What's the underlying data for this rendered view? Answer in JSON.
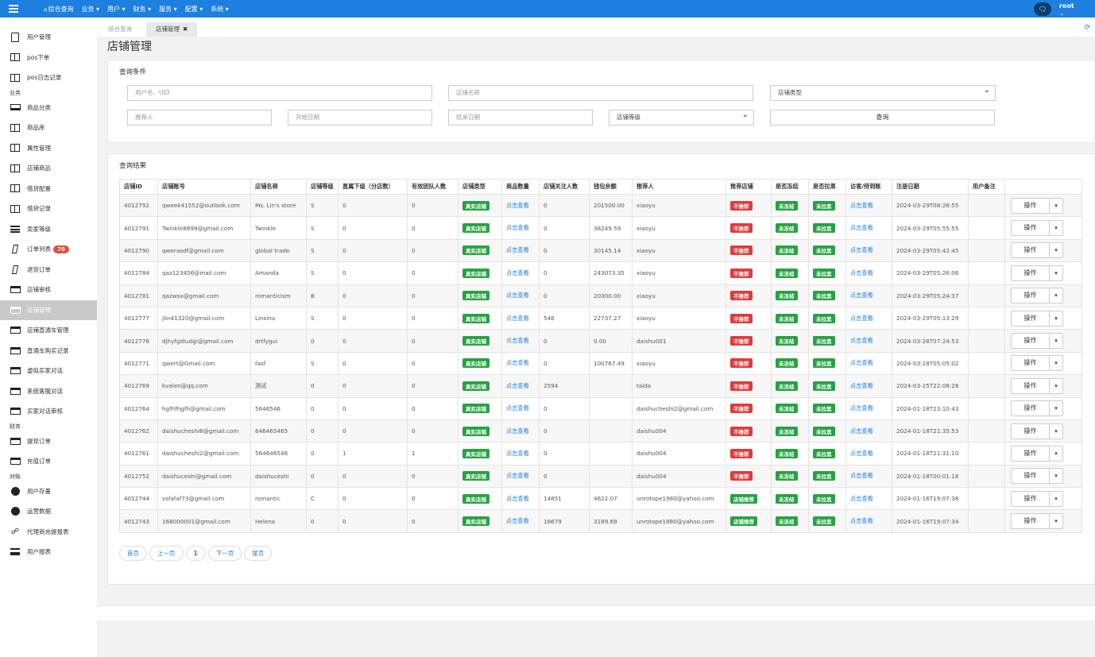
{
  "topbar": {
    "nav": [
      "综合查询",
      "业务",
      "用户",
      "财务",
      "服务",
      "配置",
      "系统"
    ],
    "user": "root"
  },
  "sidebar": {
    "items": [
      {
        "type": "item",
        "label": "用户管理",
        "icon": "file-icon"
      },
      {
        "type": "item",
        "label": "pos下单",
        "icon": "columns-icon"
      },
      {
        "type": "item",
        "label": "pos日志记录",
        "icon": "columns-icon"
      },
      {
        "type": "group",
        "label": "业务"
      },
      {
        "type": "item",
        "label": "商品分类",
        "icon": "laptop-icon"
      },
      {
        "type": "item",
        "label": "商品库",
        "icon": "columns-icon"
      },
      {
        "type": "item",
        "label": "属性管理",
        "icon": "columns-icon"
      },
      {
        "type": "item",
        "label": "店铺商品",
        "icon": "columns-icon"
      },
      {
        "type": "item",
        "label": "借贷配置",
        "icon": "columns-icon"
      },
      {
        "type": "item",
        "label": "借贷记录",
        "icon": "columns-icon"
      },
      {
        "type": "item",
        "label": "卖家等级",
        "icon": "list-icon"
      },
      {
        "type": "item",
        "label": "订单列表",
        "icon": "italic-icon",
        "badge": "70"
      },
      {
        "type": "item",
        "label": "退货订单",
        "icon": "italic-icon"
      },
      {
        "type": "item",
        "label": "店铺审核",
        "icon": "card-icon"
      },
      {
        "type": "item",
        "label": "店铺管理",
        "icon": "card-icon",
        "active": true
      },
      {
        "type": "item",
        "label": "店铺直通车管理",
        "icon": "card-icon"
      },
      {
        "type": "item",
        "label": "直通车购买记录",
        "icon": "card-icon"
      },
      {
        "type": "item",
        "label": "虚拟买家对话",
        "icon": "card-icon"
      },
      {
        "type": "item",
        "label": "系统客服对话",
        "icon": "card-icon"
      },
      {
        "type": "item",
        "label": "买家对话审核",
        "icon": "card-icon"
      },
      {
        "type": "group",
        "label": "财务"
      },
      {
        "type": "item",
        "label": "提现订单",
        "icon": "card-icon"
      },
      {
        "type": "item",
        "label": "充值订单",
        "icon": "card-icon"
      },
      {
        "type": "group",
        "label": "对账"
      },
      {
        "type": "item",
        "label": "用户存量",
        "icon": "pie-icon"
      },
      {
        "type": "item",
        "label": "运营数据",
        "icon": "pie-icon"
      },
      {
        "type": "item",
        "label": "代理商充提报表",
        "icon": "sitemap-icon"
      },
      {
        "type": "item",
        "label": "用户报表",
        "icon": "align-icon"
      }
    ]
  },
  "tabs": {
    "home": "综合查询",
    "current": "店铺管理"
  },
  "page_title": "店铺管理",
  "query": {
    "title": "查询条件",
    "user_placeholder": "用户名、UID",
    "shop_name_placeholder": "店铺名称",
    "shop_type_selected": "店铺类型",
    "referrer_placeholder": "推荐人",
    "start_date_placeholder": "开始日期",
    "end_date_placeholder": "结束日期",
    "shop_level_selected": "店铺等级",
    "search_label": "查询"
  },
  "results": {
    "title": "查询结果",
    "columns": [
      "店铺ID",
      "店铺账号",
      "店铺名称",
      "店铺等级",
      "直属下级（分店数）",
      "有效团队人数",
      "店铺类型",
      "商品数量",
      "店铺关注人数",
      "钱包余额",
      "推荐人",
      "推荐店铺",
      "是否冻结",
      "是否拉黑",
      "访客/待到账",
      "注册日期",
      "用户备注",
      ""
    ],
    "op_label": "操作",
    "rows": [
      [
        "4012792",
        "qweek41552@outlook.com",
        "Ms. Lin's store",
        "S",
        "0",
        "0",
        "真实店铺",
        "点击查看",
        "0",
        "201500.00",
        "xiaoyu",
        "不推荐",
        "未冻结",
        "未拉黑",
        "点击查看",
        "2024-03-29T08:26:55",
        ""
      ],
      [
        "4012791",
        "Twinkle8899@gmail.com",
        "Twinkle",
        "S",
        "0",
        "0",
        "真实店铺",
        "点击查看",
        "0",
        "38249.59",
        "xiaoyu",
        "不推荐",
        "未冻结",
        "未拉黑",
        "点击查看",
        "2024-03-29T05:55:55",
        ""
      ],
      [
        "4012790",
        "qwerasdf@gmail.com",
        "global trade",
        "S",
        "0",
        "0",
        "真实店铺",
        "点击查看",
        "0",
        "30145.14",
        "xiaoyu",
        "不推荐",
        "未冻结",
        "未拉黑",
        "点击查看",
        "2024-03-29T05:42:45",
        ""
      ],
      [
        "4012784",
        "qaz123456@mail.com",
        "Amanda",
        "S",
        "0",
        "0",
        "真实店铺",
        "点击查看",
        "0",
        "243073.35",
        "xiaoyu",
        "不推荐",
        "未冻结",
        "未拉黑",
        "点击查看",
        "2024-03-29T05:26:06",
        ""
      ],
      [
        "4012781",
        "qazwsx@gmail.com",
        "romanticism",
        "B",
        "0",
        "0",
        "真实店铺",
        "点击查看",
        "0",
        "20300.00",
        "xiaoyu",
        "不推荐",
        "未冻结",
        "未拉黑",
        "点击查看",
        "2024-03-29T05:24:37",
        ""
      ],
      [
        "4012777",
        "jlin41320@gmail.com",
        "Linsina",
        "S",
        "0",
        "0",
        "真实店铺",
        "点击查看",
        "546",
        "22737.27",
        "xiaoyu",
        "不推荐",
        "未冻结",
        "未拉黑",
        "点击查看",
        "2024-03-29T05:13:29",
        ""
      ],
      [
        "4012776",
        "djhyfgdiudgi@gmail.com",
        "drtfygui",
        "0",
        "0",
        "0",
        "真实店铺",
        "点击查看",
        "0",
        "0.00",
        "daishu001",
        "不推荐",
        "未冻结",
        "未拉黑",
        "点击查看",
        "2024-03-28T07:24:53",
        ""
      ],
      [
        "4012771",
        "qwert@Gmail.com",
        "fasf",
        "S",
        "0",
        "0",
        "真实店铺",
        "点击查看",
        "0",
        "100767.49",
        "xiaoyu",
        "不推荐",
        "未冻结",
        "未拉黑",
        "点击查看",
        "2024-03-28T05:05:02",
        ""
      ],
      [
        "4012769",
        "kvalen@qq.com",
        "测试",
        "0",
        "0",
        "0",
        "真实店铺",
        "点击查看",
        "2594",
        "",
        "taida",
        "不推荐",
        "未冻结",
        "未拉黑",
        "点击查看",
        "2024-03-25T22:08:28",
        ""
      ],
      [
        "4012764",
        "hgfhfhgfh@gmail.com",
        "5646546",
        "0",
        "0",
        "0",
        "真实店铺",
        "点击查看",
        "0",
        "",
        "daishucheshi2@gmail.com",
        "不推荐",
        "未冻结",
        "未拉黑",
        "点击查看",
        "2024-01-18T23:10:43",
        ""
      ],
      [
        "4012762",
        "daishucheshi6@gmail.com",
        "646465465",
        "0",
        "0",
        "0",
        "真实店铺",
        "点击查看",
        "0",
        "",
        "daishu004",
        "不推荐",
        "未冻结",
        "未拉黑",
        "点击查看",
        "2024-01-18T21:35:53",
        ""
      ],
      [
        "4012761",
        "daishucheshi2@gmail.com",
        "564646546",
        "0",
        "1",
        "1",
        "真实店铺",
        "点击查看",
        "0",
        "",
        "daishu004",
        "不推荐",
        "未冻结",
        "未拉黑",
        "点击查看",
        "2024-01-18T21:31:10",
        ""
      ],
      [
        "4012752",
        "daishuceshi@gmail.com",
        "daishuceshi",
        "0",
        "0",
        "0",
        "真实店铺",
        "点击查看",
        "0",
        "",
        "daishu004",
        "不推荐",
        "未冻结",
        "未拉黑",
        "点击查看",
        "2024-01-18T00:01:18",
        ""
      ],
      [
        "4012744",
        "vsfafaf73@gmail.com",
        "romantic",
        "C",
        "0",
        "0",
        "真实店铺",
        "点击查看",
        "14851",
        "4622.07",
        "unrotope1980@yahoo.com",
        "店铺推荐",
        "未冻结",
        "未拉黑",
        "点击查看",
        "2024-01-16T19:07:38",
        ""
      ],
      [
        "4012743",
        "168000001@gmail.com",
        "Helena",
        "0",
        "0",
        "0",
        "真实店铺",
        "点击查看",
        "16679",
        "3189.69",
        "unrotope1980@yahoo.com",
        "店铺推荐",
        "未冻结",
        "未拉黑",
        "点击查看",
        "2024-01-16T19:07:34",
        ""
      ]
    ]
  },
  "pager": {
    "first": "首页",
    "prev": "上一页",
    "current": "1",
    "next": "下一页",
    "last": "尾页"
  },
  "colors": {
    "topbar": "#1d7fe0",
    "tag_green": "#27a243",
    "tag_red": "#e03b3b",
    "link": "#1d7fe0"
  }
}
